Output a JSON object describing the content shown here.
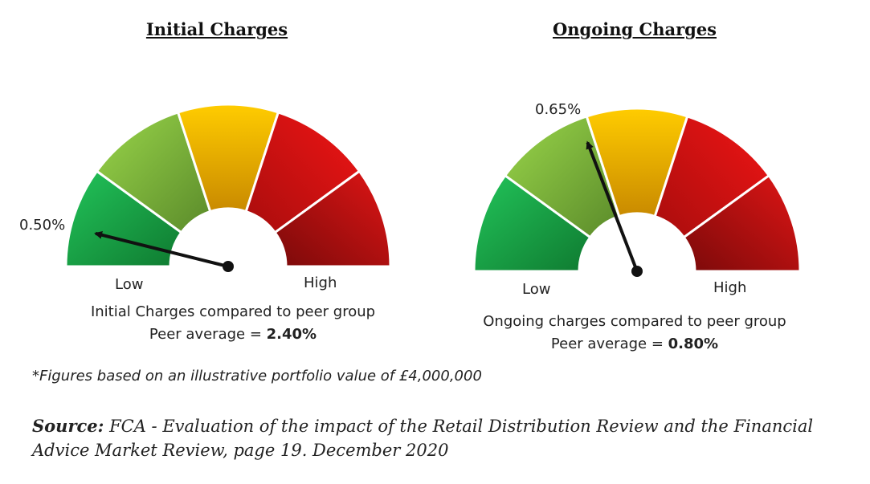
{
  "chart_data": [
    {
      "type": "gauge",
      "title": "Initial Charges",
      "value_label": "0.50%",
      "value": 0.5,
      "low_label": "Low",
      "high_label": "High",
      "caption": "Initial Charges compared to peer group",
      "peer_label": "Peer average = ",
      "peer_value": "2.40%",
      "segments": [
        "#1db24a",
        "#8cc63f",
        "#f5c200",
        "#e01010",
        "#c0141b"
      ]
    },
    {
      "type": "gauge",
      "title": "Ongoing Charges",
      "value_label": "0.65%",
      "value": 0.65,
      "low_label": "Low",
      "high_label": "High",
      "caption": "Ongoing charges compared to peer group",
      "peer_label": "Peer average = ",
      "peer_value": "0.80%",
      "segments": [
        "#1db24a",
        "#8cc63f",
        "#f5c200",
        "#e01010",
        "#c0141b"
      ]
    }
  ],
  "footnote": "*Figures based on an illustrative portfolio value of £4,000,000",
  "source": {
    "label": "Source:",
    "text": " FCA - Evaluation of the impact of the Retail Distribution Review and the Financial Advice Market Review, page 19. December 2020"
  }
}
